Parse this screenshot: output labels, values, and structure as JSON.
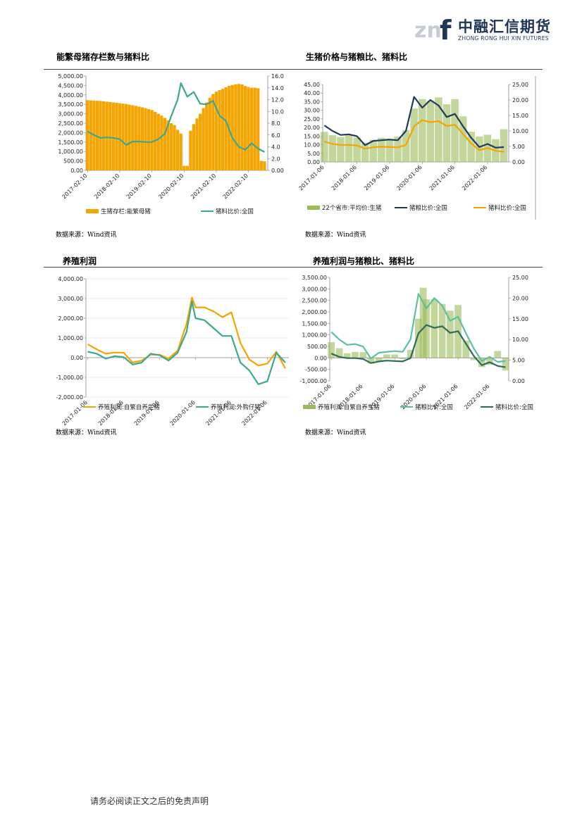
{
  "header": {
    "logo_mark": "znf",
    "logo_cn": "中融汇信期货",
    "logo_en": "ZHONG RONG HUI XIN FUTURES"
  },
  "footer": {
    "disclaimer": "请务必阅读正文之后的免责声明"
  },
  "panels": [
    {
      "title": "能繁母猪存栏数与猪料比",
      "source": "数据来源：Wind资讯"
    },
    {
      "title": "生猪价格与猪粮比、猪料比",
      "source": "数据来源：Wind资讯"
    },
    {
      "title": "养殖利润",
      "source": "数据来源：Wind资讯"
    },
    {
      "title": "养殖利润与猪粮比、猪料比",
      "source": "数据来源：Wind资讯"
    }
  ],
  "chart_data": [
    {
      "type": "bar",
      "title": "能繁母猪存栏数与猪料比",
      "x_ticks": [
        "2017-02-10",
        "2018-02-10",
        "2019-02-10",
        "2020-02-10",
        "2021-02-10",
        "2022-02-10"
      ],
      "ylim": [
        0,
        5000
      ],
      "y_ticks": [
        "5,000.00",
        "4,500.00",
        "4,000.00",
        "3,500.00",
        "3,000.00",
        "2,500.00",
        "2,000.00",
        "1,500.00",
        "1,000.00",
        "500.00",
        "0.00"
      ],
      "y2lim": [
        0,
        16
      ],
      "y2_ticks": [
        "16.0",
        "14.0",
        "12.0",
        "10.0",
        "8.0",
        "6.0",
        "4.0",
        "2.0",
        "0.00"
      ],
      "series": [
        {
          "name": "生猪存栏:能繁母猪",
          "axis": "left",
          "kind": "bar",
          "color": "#f5a400",
          "x": [
            2017.1,
            2017.2,
            2017.3,
            2017.4,
            2017.5,
            2017.6,
            2017.7,
            2017.8,
            2017.9,
            2018.0,
            2018.1,
            2018.2,
            2018.3,
            2018.4,
            2018.5,
            2018.6,
            2018.7,
            2018.8,
            2018.9,
            2019.0,
            2019.1,
            2019.2,
            2019.3,
            2019.4,
            2019.5,
            2019.6,
            2019.7,
            2019.8,
            2019.9,
            2020.0,
            2020.1,
            2020.2,
            2020.3,
            2020.4,
            2020.5,
            2020.6,
            2020.7,
            2020.8,
            2020.9,
            2021.0,
            2021.1,
            2021.2,
            2021.3,
            2021.4,
            2021.5,
            2021.6,
            2021.7,
            2021.8,
            2021.9,
            2022.0,
            2022.1,
            2022.2,
            2022.3,
            2022.4,
            2022.5,
            2022.6
          ],
          "values": [
            3720,
            3710,
            3700,
            3690,
            3680,
            3660,
            3640,
            3620,
            3600,
            3580,
            3560,
            3540,
            3520,
            3480,
            3450,
            3420,
            3380,
            3340,
            3300,
            3250,
            3200,
            3100,
            3000,
            2900,
            2780,
            2650,
            2500,
            2400,
            2150,
            1950,
            240,
            240,
            2100,
            2450,
            2750,
            3000,
            3300,
            3600,
            3850,
            4050,
            4170,
            4250,
            4320,
            4400,
            4480,
            4520,
            4560,
            4580,
            4550,
            4470,
            4420,
            4380,
            4380,
            4350,
            500,
            480
          ]
        },
        {
          "name": "猪料比价:全国",
          "axis": "right",
          "kind": "line",
          "color": "#3aa98e",
          "x": [
            2017.1,
            2017.3,
            2017.5,
            2017.7,
            2017.9,
            2018.1,
            2018.3,
            2018.5,
            2018.7,
            2018.9,
            2019.1,
            2019.3,
            2019.5,
            2019.7,
            2019.9,
            2020.0,
            2020.2,
            2020.4,
            2020.6,
            2020.8,
            2021.0,
            2021.2,
            2021.4,
            2021.6,
            2021.8,
            2022.0,
            2022.2,
            2022.4,
            2022.6
          ],
          "values": [
            6.6,
            6.0,
            5.5,
            5.6,
            5.5,
            5.3,
            4.3,
            4.9,
            4.9,
            4.8,
            4.8,
            5.3,
            6.2,
            9.2,
            12.0,
            14.8,
            12.5,
            13.3,
            11.3,
            11.2,
            11.8,
            9.3,
            8.4,
            5.5,
            4.0,
            3.5,
            4.6,
            3.7,
            3.1
          ]
        }
      ]
    },
    {
      "type": "bar",
      "title": "生猪价格与猪粮比、猪料比",
      "x_ticks": [
        "2017-01-06",
        "2018-01-06",
        "2019-01-06",
        "2020-01-06",
        "2021-01-06",
        "2022-01-06"
      ],
      "ylim": [
        0,
        45
      ],
      "y_ticks": [
        "45.00",
        "40.00",
        "35.00",
        "30.00",
        "25.00",
        "20.00",
        "15.00",
        "10.00",
        "5.00",
        "0.00"
      ],
      "y2lim": [
        0,
        25
      ],
      "y2_ticks": [
        "25.00",
        "20.00",
        "15.00",
        "10.00",
        "5.00",
        "0.00"
      ],
      "series": [
        {
          "name": "22个省市:平均价:生猪",
          "axis": "left",
          "kind": "bar",
          "color": "#9bbb59",
          "x": [
            2017.0,
            2017.25,
            2017.5,
            2017.75,
            2018.0,
            2018.25,
            2018.5,
            2018.75,
            2019.0,
            2019.25,
            2019.5,
            2019.75,
            2020.0,
            2020.25,
            2020.5,
            2020.75,
            2021.0,
            2021.25,
            2021.5,
            2021.75,
            2022.0,
            2022.25,
            2022.5
          ],
          "values": [
            17.5,
            15.5,
            14.5,
            15.5,
            14.2,
            11.2,
            12.8,
            14.0,
            13.5,
            14.8,
            18.5,
            31.0,
            36.5,
            35.5,
            37.5,
            33.5,
            36.5,
            26.5,
            17.5,
            14.8,
            15.8,
            13.2,
            19.0
          ]
        },
        {
          "name": "猪粮比价:全国",
          "axis": "right",
          "kind": "line",
          "color": "#1f3a5a",
          "x": [
            2017.0,
            2017.25,
            2017.5,
            2017.75,
            2018.0,
            2018.25,
            2018.5,
            2018.75,
            2019.0,
            2019.25,
            2019.5,
            2019.75,
            2020.0,
            2020.25,
            2020.5,
            2020.75,
            2021.0,
            2021.25,
            2021.5,
            2021.75,
            2022.0,
            2022.25,
            2022.5
          ],
          "values": [
            11.8,
            10.0,
            8.7,
            8.9,
            8.3,
            5.4,
            6.8,
            7.0,
            7.2,
            7.0,
            10.0,
            21.0,
            17.5,
            20.0,
            18.2,
            14.5,
            15.5,
            11.5,
            7.8,
            4.8,
            5.8,
            4.6,
            4.8
          ]
        },
        {
          "name": "猪料比价:全国",
          "axis": "right",
          "kind": "line",
          "color": "#f5a400",
          "x": [
            2017.0,
            2017.25,
            2017.5,
            2017.75,
            2018.0,
            2018.25,
            2018.5,
            2018.75,
            2019.0,
            2019.25,
            2019.5,
            2019.75,
            2020.0,
            2020.25,
            2020.5,
            2020.75,
            2021.0,
            2021.25,
            2021.5,
            2021.75,
            2022.0,
            2022.25,
            2022.5
          ],
          "values": [
            6.6,
            5.8,
            5.5,
            5.5,
            5.3,
            4.3,
            4.7,
            4.9,
            4.8,
            4.7,
            5.5,
            11.5,
            13.5,
            12.8,
            13.2,
            11.6,
            12.0,
            9.0,
            6.0,
            3.8,
            4.5,
            3.6,
            3.3
          ]
        }
      ]
    },
    {
      "type": "line",
      "title": "养殖利润",
      "x_ticks": [
        "2017-01-06",
        "2018-01-06",
        "2019-01-06",
        "2020-01-06",
        "2021-01-06",
        "2022-01-06"
      ],
      "ylim": [
        -2000,
        4000
      ],
      "y_ticks": [
        "4,000.00",
        "3,000.00",
        "2,000.00",
        "1,000.00",
        "0.00",
        "-1,000.00",
        "-2,000.00"
      ],
      "series": [
        {
          "name": "养殖利润:自繁自养生猪",
          "color": "#f5a400",
          "x": [
            2017.0,
            2017.25,
            2017.5,
            2017.75,
            2018.0,
            2018.25,
            2018.5,
            2018.75,
            2019.0,
            2019.25,
            2019.5,
            2019.75,
            2019.9,
            2020.0,
            2020.25,
            2020.5,
            2020.75,
            2021.0,
            2021.25,
            2021.5,
            2021.75,
            2022.0,
            2022.25,
            2022.5
          ],
          "values": [
            680,
            420,
            200,
            260,
            250,
            -250,
            -150,
            150,
            150,
            -50,
            350,
            1700,
            3050,
            2550,
            2550,
            2350,
            2050,
            2300,
            750,
            -100,
            -400,
            -300,
            300,
            -550
          ]
        },
        {
          "name": "养殖利润:外购仔猪",
          "color": "#3aa98e",
          "x": [
            2017.0,
            2017.25,
            2017.5,
            2017.75,
            2018.0,
            2018.25,
            2018.5,
            2018.75,
            2019.0,
            2019.25,
            2019.5,
            2019.75,
            2019.9,
            2020.0,
            2020.25,
            2020.5,
            2020.75,
            2021.0,
            2021.25,
            2021.5,
            2021.75,
            2022.0,
            2022.25,
            2022.5
          ],
          "values": [
            300,
            200,
            -50,
            80,
            30,
            -350,
            -250,
            200,
            120,
            -150,
            250,
            1300,
            2850,
            2000,
            1900,
            1500,
            1100,
            1100,
            -250,
            -650,
            -1350,
            -1200,
            250,
            -250
          ]
        }
      ]
    },
    {
      "type": "bar",
      "title": "养殖利润与猪粮比、猪料比",
      "x_ticks": [
        "2017-01-06",
        "2018-01-06",
        "2019-01-06",
        "2020-01-06",
        "2021-01-06",
        "2022-01-06"
      ],
      "ylim": [
        -1000,
        3500
      ],
      "y_ticks": [
        "3,500.00",
        "3,000.00",
        "2,500.00",
        "2,000.00",
        "1,500.00",
        "1,000.00",
        "500.00",
        "0.00",
        "-500.00",
        "-1,000.00"
      ],
      "y2lim": [
        0,
        25
      ],
      "y2_ticks": [
        "25.00",
        "20.00",
        "15.00",
        "10.00",
        "5.00",
        "0.00"
      ],
      "series": [
        {
          "name": "养殖利润:自繁自养生猪",
          "axis": "left",
          "kind": "bar",
          "color": "#9bbb59",
          "x": [
            2017.0,
            2017.25,
            2017.5,
            2017.75,
            2018.0,
            2018.25,
            2018.5,
            2018.75,
            2019.0,
            2019.25,
            2019.5,
            2019.75,
            2019.9,
            2020.0,
            2020.25,
            2020.5,
            2020.75,
            2021.0,
            2021.25,
            2021.5,
            2021.75,
            2022.0,
            2022.25,
            2022.5
          ],
          "values": [
            680,
            420,
            200,
            260,
            250,
            -250,
            -150,
            150,
            150,
            -50,
            350,
            1700,
            3050,
            2550,
            2550,
            2350,
            2050,
            2300,
            750,
            -100,
            -400,
            -300,
            300,
            -550
          ]
        },
        {
          "name": "猪粮比价:全国",
          "axis": "right",
          "kind": "line",
          "color": "#5cbf9d",
          "x": [
            2017.0,
            2017.25,
            2017.5,
            2017.75,
            2018.0,
            2018.25,
            2018.5,
            2018.75,
            2019.0,
            2019.25,
            2019.5,
            2019.75,
            2020.0,
            2020.25,
            2020.5,
            2020.75,
            2021.0,
            2021.25,
            2021.5,
            2021.75,
            2022.0,
            2022.25,
            2022.5
          ],
          "values": [
            11.8,
            10.0,
            8.7,
            8.9,
            8.3,
            5.4,
            6.8,
            7.0,
            7.2,
            7.0,
            10.0,
            21.0,
            17.5,
            20.0,
            18.2,
            14.5,
            15.5,
            11.5,
            7.8,
            4.8,
            5.8,
            4.6,
            4.8
          ]
        },
        {
          "name": "猪料比价:全国",
          "axis": "right",
          "kind": "line",
          "color": "#2e6b5a",
          "x": [
            2017.0,
            2017.25,
            2017.5,
            2017.75,
            2018.0,
            2018.25,
            2018.5,
            2018.75,
            2019.0,
            2019.25,
            2019.5,
            2019.75,
            2020.0,
            2020.25,
            2020.5,
            2020.75,
            2021.0,
            2021.25,
            2021.5,
            2021.75,
            2022.0,
            2022.25,
            2022.5
          ],
          "values": [
            6.6,
            5.8,
            5.5,
            5.5,
            5.3,
            4.3,
            4.7,
            4.9,
            4.8,
            4.7,
            5.5,
            11.5,
            13.5,
            12.8,
            13.2,
            11.6,
            12.0,
            9.0,
            6.0,
            3.8,
            4.5,
            3.6,
            3.3
          ]
        }
      ]
    }
  ]
}
